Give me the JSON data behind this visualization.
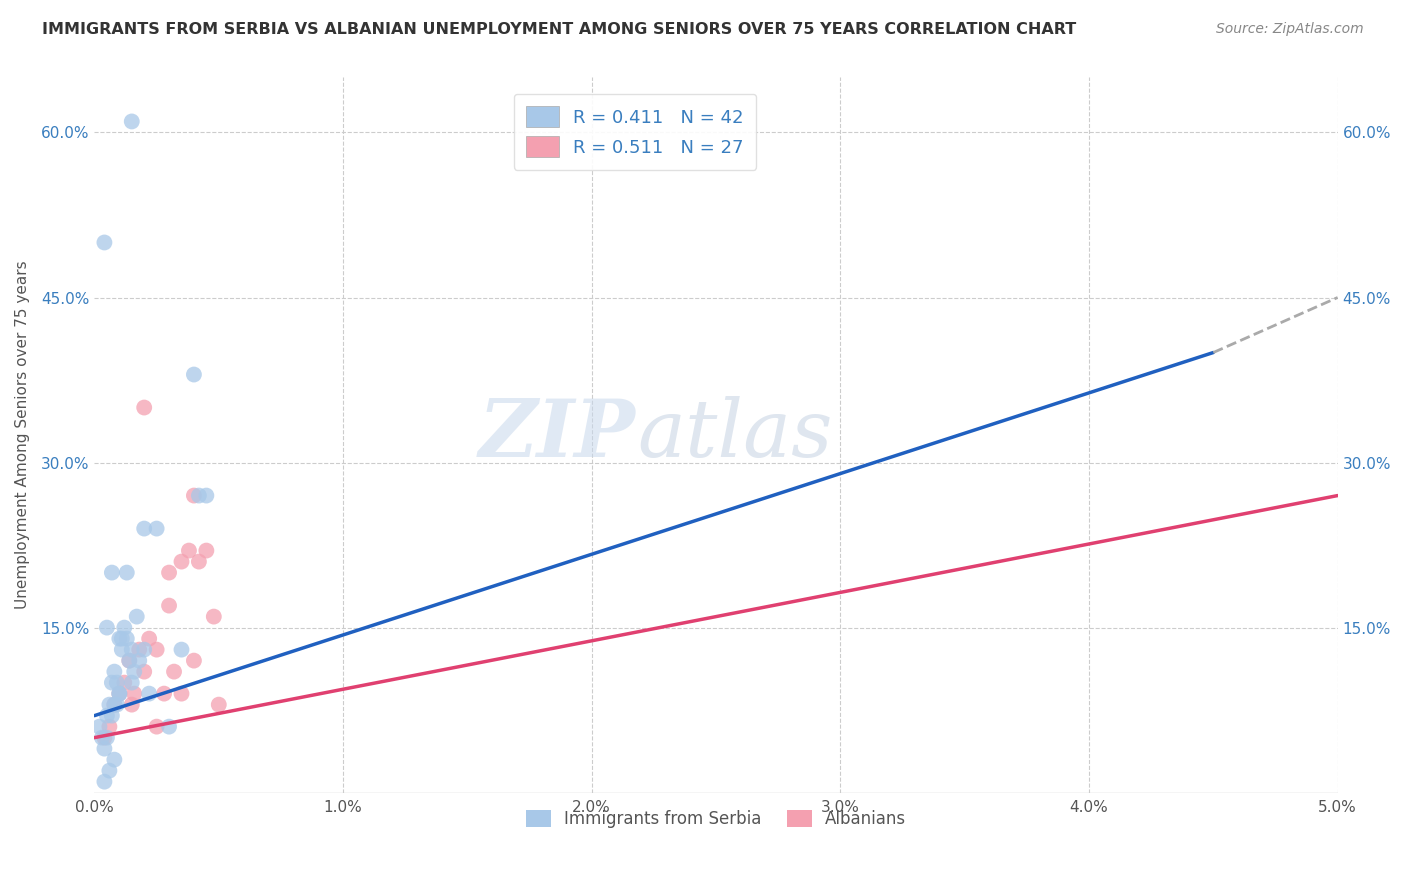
{
  "title": "IMMIGRANTS FROM SERBIA VS ALBANIAN UNEMPLOYMENT AMONG SENIORS OVER 75 YEARS CORRELATION CHART",
  "source": "Source: ZipAtlas.com",
  "xlabel": "",
  "ylabel": "Unemployment Among Seniors over 75 years",
  "legend_bottom": [
    "Immigrants from Serbia",
    "Albanians"
  ],
  "xlim": [
    0.0,
    0.05
  ],
  "ylim": [
    0.0,
    0.65
  ],
  "xticks": [
    0.0,
    0.01,
    0.02,
    0.03,
    0.04,
    0.05
  ],
  "xticklabels": [
    "0.0%",
    "1.0%",
    "2.0%",
    "3.0%",
    "4.0%",
    "5.0%"
  ],
  "yticks": [
    0.0,
    0.15,
    0.3,
    0.45,
    0.6
  ],
  "yticklabels": [
    "",
    "15.0%",
    "30.0%",
    "45.0%",
    "60.0%"
  ],
  "R_blue": 0.411,
  "N_blue": 42,
  "R_pink": 0.511,
  "N_pink": 27,
  "blue_color": "#a8c8e8",
  "pink_color": "#f4a0b0",
  "trend_blue": "#2060c0",
  "trend_pink": "#e04070",
  "serbia_x": [
    0.0002,
    0.0003,
    0.0004,
    0.0005,
    0.0005,
    0.0006,
    0.0007,
    0.0007,
    0.0008,
    0.0008,
    0.0009,
    0.001,
    0.001,
    0.001,
    0.0011,
    0.0012,
    0.0013,
    0.0014,
    0.0015,
    0.0015,
    0.0016,
    0.0017,
    0.0018,
    0.002,
    0.002,
    0.0022,
    0.0025,
    0.003,
    0.0035,
    0.004,
    0.0042,
    0.0045,
    0.0008,
    0.0006,
    0.0004,
    0.0004,
    0.0005,
    0.0007,
    0.0009,
    0.0011,
    0.0013,
    0.0015
  ],
  "serbia_y": [
    0.06,
    0.05,
    0.04,
    0.07,
    0.05,
    0.08,
    0.1,
    0.07,
    0.11,
    0.08,
    0.1,
    0.14,
    0.09,
    0.09,
    0.13,
    0.15,
    0.14,
    0.12,
    0.1,
    0.13,
    0.11,
    0.16,
    0.12,
    0.24,
    0.13,
    0.09,
    0.24,
    0.06,
    0.13,
    0.38,
    0.27,
    0.27,
    0.03,
    0.02,
    0.5,
    0.01,
    0.15,
    0.2,
    0.08,
    0.14,
    0.2,
    0.61
  ],
  "albanian_x": [
    0.0004,
    0.0006,
    0.0008,
    0.001,
    0.0012,
    0.0014,
    0.0016,
    0.0018,
    0.002,
    0.0022,
    0.0025,
    0.0028,
    0.003,
    0.0032,
    0.0035,
    0.0038,
    0.004,
    0.0042,
    0.0045,
    0.0048,
    0.005,
    0.0015,
    0.002,
    0.0025,
    0.003,
    0.0035,
    0.004
  ],
  "albanian_y": [
    0.05,
    0.06,
    0.08,
    0.09,
    0.1,
    0.12,
    0.09,
    0.13,
    0.35,
    0.14,
    0.13,
    0.09,
    0.17,
    0.11,
    0.09,
    0.22,
    0.12,
    0.21,
    0.22,
    0.16,
    0.08,
    0.08,
    0.11,
    0.06,
    0.2,
    0.21,
    0.27
  ],
  "blue_trend_x0": 0.0,
  "blue_trend_y0": 0.07,
  "blue_trend_x1": 0.045,
  "blue_trend_y1": 0.4,
  "blue_trend_xdash": 0.05,
  "blue_trend_ydash": 0.45,
  "pink_trend_x0": 0.0,
  "pink_trend_y0": 0.05,
  "pink_trend_x1": 0.05,
  "pink_trend_y1": 0.27,
  "background_color": "#ffffff",
  "grid_color": "#cccccc",
  "watermark_zip": "ZIP",
  "watermark_atlas": "atlas",
  "figsize": [
    14.06,
    8.92
  ],
  "dpi": 100
}
